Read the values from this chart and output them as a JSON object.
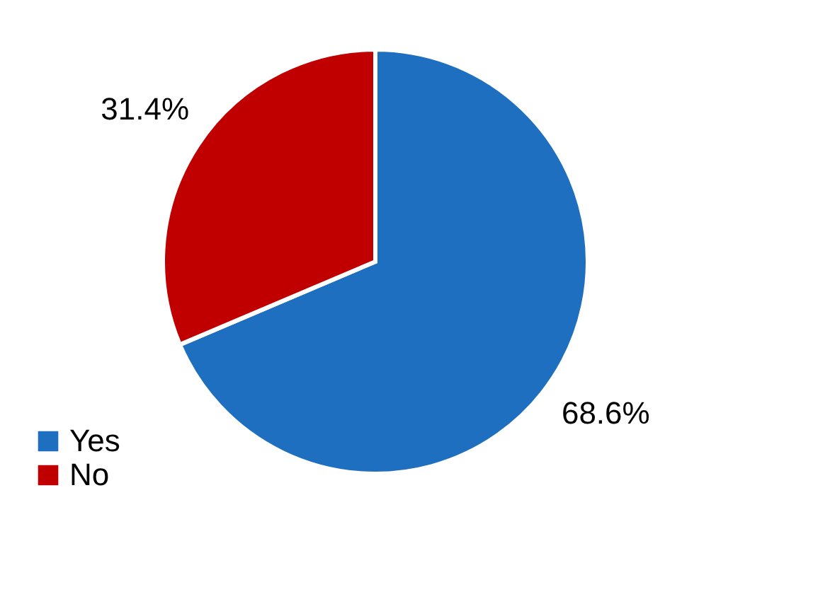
{
  "chart_data": {
    "type": "pie",
    "categories": [
      "Yes",
      "No"
    ],
    "values": [
      68.6,
      31.4
    ],
    "colors": [
      "#1f6fc0",
      "#c00000"
    ],
    "value_labels": [
      "68.6%",
      "31.4%"
    ],
    "legend": "bottom left"
  }
}
